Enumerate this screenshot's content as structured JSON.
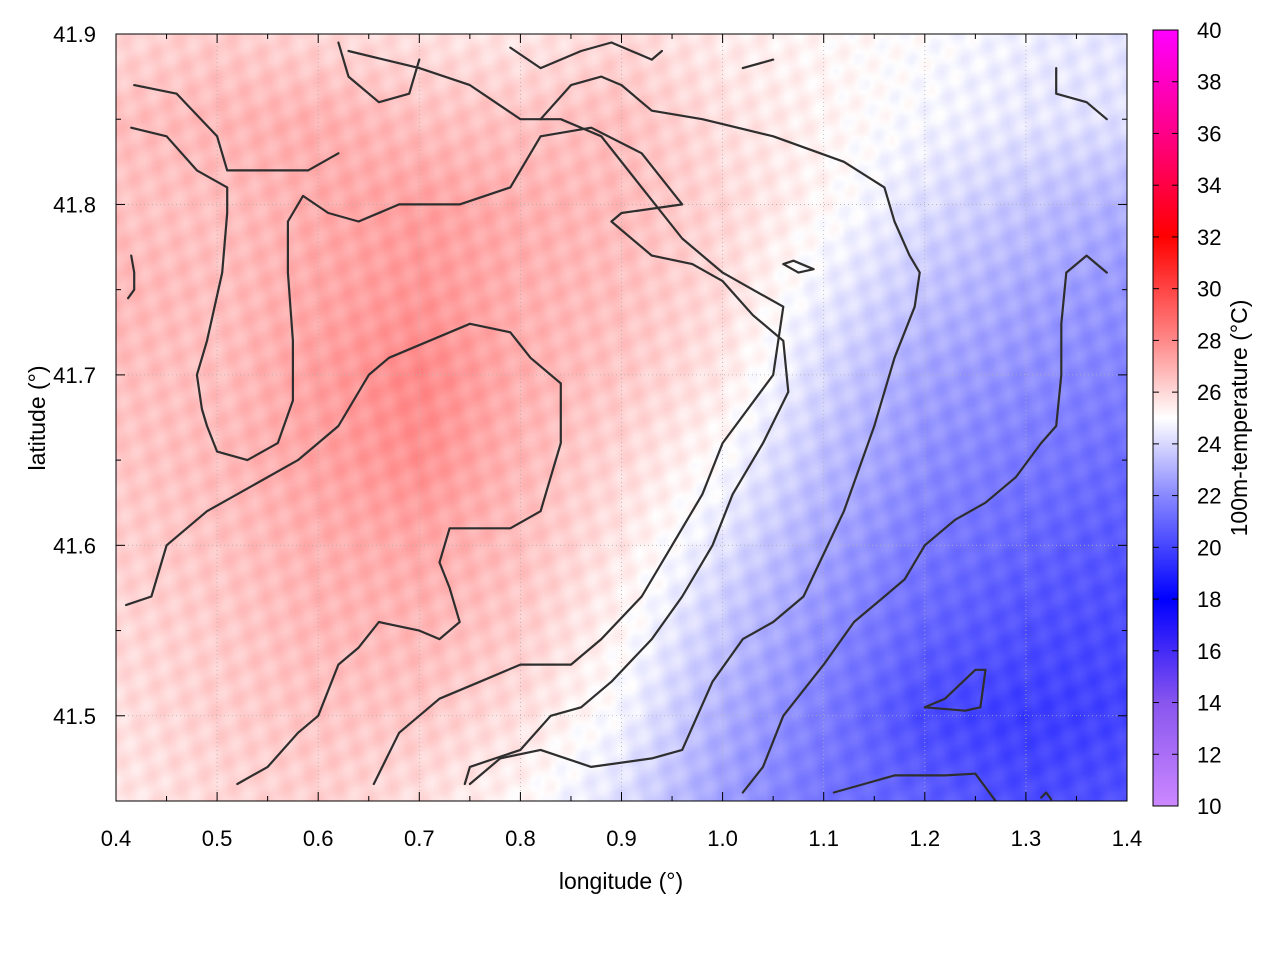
{
  "chart_data": {
    "type": "heatmap",
    "xlabel": "longitude (°)",
    "ylabel": "latitude (°)",
    "xlim": [
      0.4,
      1.4
    ],
    "ylim": [
      41.45,
      41.9
    ],
    "xticks": [
      "0.4",
      "0.5",
      "0.6",
      "0.7",
      "0.8",
      "0.9",
      "1.0",
      "1.1",
      "1.2",
      "1.3",
      "1.4"
    ],
    "yticks": [
      "41.5",
      "41.6",
      "41.7",
      "41.8",
      "41.9"
    ],
    "grid": true,
    "colorbar": {
      "label": "100m-temperature (°C)",
      "range": [
        10,
        40
      ],
      "ticks": [
        "10",
        "12",
        "14",
        "16",
        "18",
        "20",
        "22",
        "24",
        "26",
        "28",
        "30",
        "32",
        "34",
        "36",
        "38",
        "40"
      ],
      "stops": [
        {
          "value": 10,
          "color": "#cc88ff"
        },
        {
          "value": 14,
          "color": "#8855ee"
        },
        {
          "value": 18,
          "color": "#0000ff"
        },
        {
          "value": 22,
          "color": "#8888ff"
        },
        {
          "value": 25,
          "color": "#ffffff"
        },
        {
          "value": 28,
          "color": "#ff8888"
        },
        {
          "value": 32,
          "color": "#ff0000"
        },
        {
          "value": 36,
          "color": "#ff0088"
        },
        {
          "value": 40,
          "color": "#ff00ff"
        }
      ]
    },
    "temperature_grid": {
      "lon": [
        0.4,
        0.5,
        0.6,
        0.7,
        0.8,
        0.9,
        1.0,
        1.1,
        1.2,
        1.3,
        1.4
      ],
      "lat": [
        41.9,
        41.85,
        41.8,
        41.75,
        41.7,
        41.65,
        41.6,
        41.55,
        41.5,
        41.45
      ],
      "values": [
        [
          26.0,
          26.3,
          26.0,
          25.8,
          25.6,
          26.0,
          25.5,
          25.2,
          25.0,
          24.6,
          24.4
        ],
        [
          26.6,
          26.8,
          27.0,
          26.6,
          26.5,
          26.6,
          25.8,
          25.3,
          24.8,
          24.4,
          24.2
        ],
        [
          26.5,
          26.6,
          27.1,
          27.4,
          27.0,
          26.7,
          26.0,
          25.2,
          24.2,
          23.5,
          23.0
        ],
        [
          26.8,
          26.6,
          27.2,
          27.6,
          27.0,
          26.6,
          25.9,
          24.6,
          23.5,
          22.8,
          22.3
        ],
        [
          26.6,
          26.6,
          27.4,
          28.0,
          27.0,
          26.4,
          25.6,
          24.0,
          22.7,
          22.2,
          21.8
        ],
        [
          26.4,
          26.7,
          27.3,
          27.8,
          26.8,
          26.0,
          25.0,
          23.4,
          22.2,
          21.6,
          21.2
        ],
        [
          26.2,
          26.5,
          27.0,
          27.2,
          26.6,
          25.6,
          24.3,
          22.8,
          21.6,
          21.0,
          20.6
        ],
        [
          26.0,
          26.3,
          26.8,
          26.8,
          26.3,
          25.2,
          23.6,
          22.2,
          21.0,
          20.4,
          20.2
        ],
        [
          25.8,
          26.2,
          26.5,
          26.4,
          25.8,
          24.8,
          23.0,
          21.7,
          20.2,
          19.8,
          20.0
        ],
        [
          25.6,
          26.0,
          26.2,
          25.8,
          25.2,
          24.2,
          22.6,
          21.4,
          20.8,
          20.2,
          20.4
        ]
      ]
    },
    "contours": [
      {
        "points": [
          [
            0.418,
            41.87
          ],
          [
            0.46,
            41.865
          ],
          [
            0.5,
            41.84
          ],
          [
            0.51,
            41.82
          ],
          [
            0.59,
            41.82
          ],
          [
            0.62,
            41.83
          ]
        ]
      },
      {
        "points": [
          [
            0.415,
            41.845
          ],
          [
            0.45,
            41.84
          ],
          [
            0.48,
            41.82
          ],
          [
            0.51,
            41.81
          ],
          [
            0.51,
            41.795
          ],
          [
            0.505,
            41.76
          ],
          [
            0.49,
            41.72
          ],
          [
            0.48,
            41.7
          ],
          [
            0.485,
            41.68
          ],
          [
            0.49,
            41.67
          ],
          [
            0.5,
            41.655
          ],
          [
            0.53,
            41.65
          ],
          [
            0.56,
            41.66
          ],
          [
            0.575,
            41.685
          ],
          [
            0.575,
            41.72
          ],
          [
            0.57,
            41.76
          ],
          [
            0.57,
            41.79
          ],
          [
            0.585,
            41.805
          ],
          [
            0.61,
            41.795
          ],
          [
            0.64,
            41.79
          ],
          [
            0.68,
            41.8
          ],
          [
            0.74,
            41.8
          ],
          [
            0.79,
            41.81
          ],
          [
            0.82,
            41.84
          ],
          [
            0.87,
            41.845
          ],
          [
            0.92,
            41.83
          ],
          [
            0.96,
            41.8
          ],
          [
            0.9,
            41.795
          ],
          [
            0.89,
            41.79
          ],
          [
            0.93,
            41.77
          ],
          [
            0.97,
            41.765
          ],
          [
            1.0,
            41.755
          ],
          [
            1.03,
            41.735
          ],
          [
            1.06,
            41.72
          ],
          [
            1.065,
            41.69
          ],
          [
            1.04,
            41.66
          ],
          [
            1.01,
            41.63
          ],
          [
            0.99,
            41.6
          ],
          [
            0.96,
            41.57
          ],
          [
            0.93,
            41.545
          ],
          [
            0.89,
            41.52
          ],
          [
            0.86,
            41.505
          ],
          [
            0.83,
            41.5
          ],
          [
            0.8,
            41.48
          ],
          [
            0.75,
            41.47
          ],
          [
            0.745,
            41.46
          ]
        ]
      },
      {
        "points": [
          [
            0.41,
            41.565
          ],
          [
            0.435,
            41.57
          ],
          [
            0.45,
            41.6
          ],
          [
            0.49,
            41.62
          ],
          [
            0.52,
            41.63
          ],
          [
            0.58,
            41.65
          ],
          [
            0.62,
            41.67
          ],
          [
            0.65,
            41.7
          ],
          [
            0.67,
            41.71
          ],
          [
            0.71,
            41.72
          ],
          [
            0.75,
            41.73
          ],
          [
            0.79,
            41.725
          ],
          [
            0.81,
            41.71
          ],
          [
            0.84,
            41.695
          ],
          [
            0.84,
            41.66
          ],
          [
            0.82,
            41.62
          ],
          [
            0.79,
            41.61
          ],
          [
            0.75,
            41.61
          ],
          [
            0.73,
            41.61
          ],
          [
            0.72,
            41.59
          ],
          [
            0.73,
            41.575
          ],
          [
            0.74,
            41.555
          ],
          [
            0.72,
            41.545
          ],
          [
            0.7,
            41.55
          ],
          [
            0.66,
            41.555
          ],
          [
            0.64,
            41.54
          ],
          [
            0.62,
            41.53
          ],
          [
            0.6,
            41.5
          ],
          [
            0.58,
            41.49
          ],
          [
            0.55,
            41.47
          ],
          [
            0.52,
            41.46
          ]
        ]
      },
      {
        "points": [
          [
            0.62,
            41.895
          ],
          [
            0.63,
            41.875
          ],
          [
            0.66,
            41.86
          ],
          [
            0.69,
            41.865
          ],
          [
            0.7,
            41.885
          ]
        ]
      },
      {
        "points": [
          [
            0.655,
            41.46
          ],
          [
            0.68,
            41.49
          ],
          [
            0.72,
            41.51
          ],
          [
            0.76,
            41.52
          ],
          [
            0.8,
            41.53
          ],
          [
            0.85,
            41.53
          ],
          [
            0.88,
            41.545
          ],
          [
            0.92,
            41.57
          ],
          [
            0.95,
            41.6
          ],
          [
            0.98,
            41.63
          ],
          [
            1.0,
            41.66
          ],
          [
            1.05,
            41.7
          ],
          [
            1.06,
            41.74
          ],
          [
            1.03,
            41.75
          ],
          [
            1.0,
            41.76
          ],
          [
            0.96,
            41.78
          ],
          [
            0.92,
            41.81
          ],
          [
            0.88,
            41.84
          ],
          [
            0.84,
            41.85
          ],
          [
            0.8,
            41.85
          ],
          [
            0.75,
            41.87
          ],
          [
            0.7,
            41.88
          ],
          [
            0.63,
            41.89
          ]
        ]
      },
      {
        "points": [
          [
            0.79,
            41.892
          ],
          [
            0.82,
            41.88
          ],
          [
            0.86,
            41.89
          ],
          [
            0.89,
            41.895
          ],
          [
            0.93,
            41.885
          ],
          [
            0.94,
            41.89
          ]
        ]
      },
      {
        "points": [
          [
            1.02,
            41.88
          ],
          [
            1.05,
            41.885
          ]
        ]
      },
      {
        "points": [
          [
            0.75,
            41.46
          ],
          [
            0.78,
            41.475
          ],
          [
            0.82,
            41.48
          ],
          [
            0.87,
            41.47
          ],
          [
            0.93,
            41.475
          ],
          [
            0.96,
            41.48
          ],
          [
            0.99,
            41.52
          ],
          [
            1.02,
            41.545
          ],
          [
            1.05,
            41.555
          ],
          [
            1.08,
            41.57
          ],
          [
            1.1,
            41.595
          ],
          [
            1.12,
            41.62
          ],
          [
            1.15,
            41.67
          ],
          [
            1.17,
            41.71
          ],
          [
            1.19,
            41.74
          ],
          [
            1.195,
            41.76
          ],
          [
            1.185,
            41.77
          ],
          [
            1.17,
            41.79
          ],
          [
            1.16,
            41.81
          ],
          [
            1.12,
            41.825
          ],
          [
            1.05,
            41.84
          ],
          [
            0.98,
            41.85
          ],
          [
            0.93,
            41.855
          ],
          [
            0.9,
            41.87
          ],
          [
            0.88,
            41.875
          ],
          [
            0.85,
            41.87
          ],
          [
            0.82,
            41.85
          ]
        ]
      },
      {
        "points": [
          [
            1.06,
            41.765
          ],
          [
            1.075,
            41.76
          ],
          [
            1.09,
            41.762
          ],
          [
            1.07,
            41.767
          ],
          [
            1.06,
            41.765
          ]
        ]
      },
      {
        "points": [
          [
            1.02,
            41.455
          ],
          [
            1.04,
            41.47
          ],
          [
            1.06,
            41.5
          ],
          [
            1.1,
            41.53
          ],
          [
            1.13,
            41.555
          ],
          [
            1.16,
            41.57
          ],
          [
            1.18,
            41.58
          ],
          [
            1.2,
            41.6
          ],
          [
            1.23,
            41.615
          ],
          [
            1.26,
            41.625
          ],
          [
            1.29,
            41.64
          ],
          [
            1.315,
            41.66
          ],
          [
            1.33,
            41.67
          ],
          [
            1.335,
            41.7
          ],
          [
            1.335,
            41.73
          ],
          [
            1.34,
            41.76
          ],
          [
            1.36,
            41.77
          ],
          [
            1.38,
            41.76
          ]
        ]
      },
      {
        "points": [
          [
            1.2,
            41.505
          ],
          [
            1.22,
            41.51
          ],
          [
            1.25,
            41.527
          ],
          [
            1.26,
            41.527
          ],
          [
            1.255,
            41.505
          ],
          [
            1.24,
            41.503
          ],
          [
            1.2,
            41.505
          ]
        ]
      },
      {
        "points": [
          [
            1.11,
            41.455
          ],
          [
            1.14,
            41.46
          ],
          [
            1.17,
            41.465
          ],
          [
            1.22,
            41.465
          ],
          [
            1.25,
            41.466
          ],
          [
            1.27,
            41.45
          ]
        ]
      },
      {
        "points": [
          [
            1.33,
            41.88
          ],
          [
            1.33,
            41.865
          ],
          [
            1.36,
            41.86
          ],
          [
            1.38,
            41.85
          ]
        ]
      },
      {
        "points": [
          [
            0.415,
            41.77
          ],
          [
            0.418,
            41.76
          ],
          [
            0.418,
            41.75
          ],
          [
            0.412,
            41.745
          ]
        ]
      },
      {
        "points": [
          [
            1.315,
            41.452
          ],
          [
            1.32,
            41.455
          ],
          [
            1.325,
            41.451
          ]
        ]
      }
    ]
  }
}
